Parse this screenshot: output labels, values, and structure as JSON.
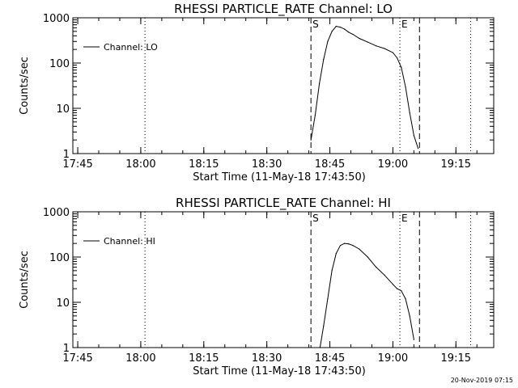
{
  "footer": {
    "timestamp": "20-Nov-2019 07:15"
  },
  "chart_data": [
    {
      "type": "line",
      "title": "RHESSI PARTICLE_RATE Channel: LO",
      "xlabel": "Start Time (11-May-18 17:43:50)",
      "ylabel": "Counts/sec",
      "yscale": "log",
      "ylim": [
        1,
        1000
      ],
      "xlim": [
        "17:43:50",
        "19:24:00"
      ],
      "xticks": [
        "17:45",
        "18:00",
        "18:15",
        "18:30",
        "18:45",
        "19:00",
        "19:15"
      ],
      "yticks": [
        "1",
        "10",
        "100",
        "1000"
      ],
      "legend": "top-left",
      "markers": [
        {
          "label": "",
          "time": "18:01:00",
          "style": "dotted"
        },
        {
          "label": "S",
          "time": "18:40:30",
          "style": "dashed"
        },
        {
          "label": "E",
          "time": "19:01:40",
          "style": "dotted"
        },
        {
          "label": "",
          "time": "19:06:20",
          "style": "dashed"
        },
        {
          "label": "",
          "time": "19:18:30",
          "style": "dotted"
        }
      ],
      "series": [
        {
          "name": "Channel: LO",
          "x": [
            "18:40:30",
            "18:41:30",
            "18:42:30",
            "18:43:30",
            "18:44:30",
            "18:45:30",
            "18:46:30",
            "18:47:30",
            "18:48:30",
            "18:49:30",
            "18:50:30",
            "18:52:00",
            "18:54:00",
            "18:56:00",
            "18:58:00",
            "19:00:00",
            "19:01:00",
            "19:02:00",
            "19:03:00",
            "19:04:00",
            "19:05:00",
            "19:06:00"
          ],
          "values": [
            2,
            7,
            35,
            120,
            300,
            500,
            650,
            620,
            560,
            480,
            430,
            350,
            290,
            240,
            210,
            170,
            130,
            80,
            30,
            8,
            2.5,
            1.3
          ]
        }
      ]
    },
    {
      "type": "line",
      "title": "RHESSI PARTICLE_RATE Channel: HI",
      "xlabel": "Start Time (11-May-18 17:43:50)",
      "ylabel": "Counts/sec",
      "yscale": "log",
      "ylim": [
        1,
        1000
      ],
      "xlim": [
        "17:43:50",
        "19:24:00"
      ],
      "xticks": [
        "17:45",
        "18:00",
        "18:15",
        "18:30",
        "18:45",
        "19:00",
        "19:15"
      ],
      "yticks": [
        "1",
        "10",
        "100",
        "1000"
      ],
      "legend": "top-left",
      "markers": [
        {
          "label": "",
          "time": "18:01:00",
          "style": "dotted"
        },
        {
          "label": "S",
          "time": "18:40:30",
          "style": "dashed"
        },
        {
          "label": "E",
          "time": "19:01:40",
          "style": "dotted"
        },
        {
          "label": "",
          "time": "19:06:20",
          "style": "dashed"
        },
        {
          "label": "",
          "time": "19:18:30",
          "style": "dotted"
        }
      ],
      "series": [
        {
          "name": "Channel: HI",
          "x": [
            "18:42:40",
            "18:43:30",
            "18:44:30",
            "18:45:30",
            "18:46:30",
            "18:47:30",
            "18:48:30",
            "18:49:30",
            "18:50:30",
            "18:52:00",
            "18:54:00",
            "18:56:00",
            "18:58:00",
            "19:00:00",
            "19:01:00",
            "19:02:00",
            "19:03:00",
            "19:04:00",
            "19:05:00"
          ],
          "values": [
            1,
            3,
            12,
            50,
            120,
            180,
            200,
            195,
            180,
            150,
            100,
            60,
            40,
            25,
            20,
            18,
            12,
            5,
            1.5
          ]
        }
      ]
    }
  ]
}
